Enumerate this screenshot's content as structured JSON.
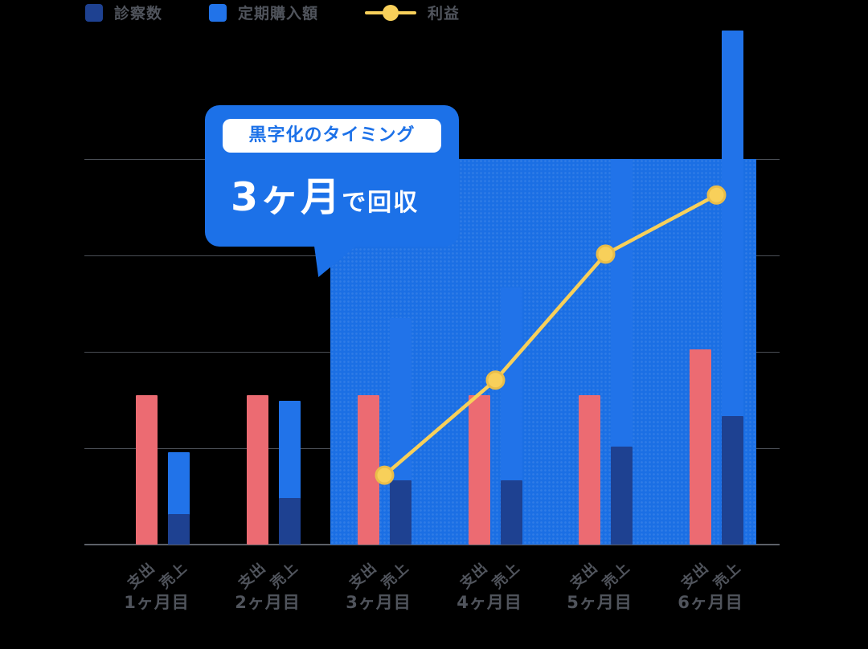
{
  "colors": {
    "background": "#000000",
    "accent_blue": "#1c71e8",
    "navy": "#1e4191",
    "bright_blue": "#2173e9",
    "red": "#ec6b72",
    "yellow": "#f8d05a",
    "gray_text": "#50545c"
  },
  "legend": {
    "items": [
      {
        "label": "診察数",
        "swatch": "square",
        "color": "#1e4191"
      },
      {
        "label": "定期購入額",
        "swatch": "square",
        "color": "#2173e9"
      },
      {
        "label": "利益",
        "swatch": "line-dot",
        "color": "#f8d05a"
      }
    ]
  },
  "chart_data": {
    "type": "bar",
    "title": "",
    "xlabel": "",
    "ylabel": "",
    "y_axis": {
      "visible_labels": false,
      "scale": "percent_of_plot_height"
    },
    "categories": [
      "1ヶ月目",
      "2ヶ月目",
      "3ヶ月目",
      "4ヶ月目",
      "5ヶ月目",
      "6ヶ月目"
    ],
    "bar_pair_labels": [
      "支出",
      "売上"
    ],
    "series": [
      {
        "name": "支出",
        "type": "bar",
        "color": "#ec6b72",
        "values": [
          29,
          29,
          29,
          29,
          29,
          38
        ]
      },
      {
        "name": "定期購入額",
        "type": "bar",
        "color": "#2173e9",
        "values": [
          18,
          28,
          44,
          50,
          75,
          100
        ]
      },
      {
        "name": "診察数",
        "type": "bar",
        "color": "#1e4191",
        "values": [
          6,
          9,
          12.5,
          12.5,
          19,
          25
        ]
      },
      {
        "name": "利益",
        "type": "line",
        "color": "#f8d05a",
        "values": [
          null,
          null,
          13.5,
          32,
          56.5,
          68
        ]
      }
    ],
    "highlight_region": {
      "from_category": "3ヶ月目",
      "to_category": "6ヶ月目",
      "top_percent": 75,
      "color": "#1b6fe4"
    },
    "annotation": {
      "badge": "黒字化のタイミング",
      "big": "3ヶ月",
      "suffix": "で回収"
    },
    "grid": {
      "horizontal_lines": 4,
      "legend_position": "top"
    }
  }
}
